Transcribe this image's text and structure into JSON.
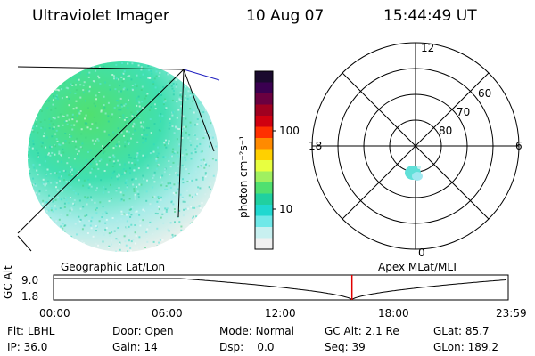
{
  "header": {
    "instrument": "Ultraviolet Imager",
    "date": "10 Aug 07",
    "time": "15:44:49 UT"
  },
  "colorbar": {
    "unit_label": "photon cm⁻²s⁻¹",
    "ticks": [
      "100",
      "10"
    ],
    "colors": [
      "#1a0a2e",
      "#3a0050",
      "#6a0040",
      "#a00020",
      "#d00010",
      "#ff3000",
      "#ff8a00",
      "#ffd000",
      "#e8ff40",
      "#a0f060",
      "#50e070",
      "#20d0a0",
      "#20d8d0",
      "#70e8e8",
      "#c8f0f0",
      "#f0f0f0"
    ]
  },
  "polar": {
    "hour_labels": [
      "12",
      "18",
      "6",
      "0"
    ],
    "lat_labels": [
      "60",
      "70",
      "80"
    ]
  },
  "projections": {
    "left": "Geographic Lat/Lon",
    "right": "Apex MLat/MLT"
  },
  "timeline": {
    "ylabel": "GC Alt",
    "yticks": [
      "9.0",
      "1.8"
    ],
    "xticks": [
      "00:00",
      "06:00",
      "12:00",
      "18:00",
      "23:59"
    ],
    "current_time_hours": 15.75,
    "current_marker_color": "#e00000"
  },
  "info": [
    {
      "label": "Flt:",
      "value": "LBHL"
    },
    {
      "label": "Door:",
      "value": "Open"
    },
    {
      "label": "Mode:",
      "value": "Normal"
    },
    {
      "label": "GC Alt:",
      "value": "2.1 Re"
    },
    {
      "label": "GLat:",
      "value": "85.7"
    },
    {
      "label": "IP:",
      "value": "36.0"
    },
    {
      "label": "Gain:",
      "value": "14"
    },
    {
      "label": "Dsp:",
      "value": "0.0"
    },
    {
      "label": "Seq:",
      "value": "39"
    },
    {
      "label": "GLon:",
      "value": "189.2"
    }
  ]
}
